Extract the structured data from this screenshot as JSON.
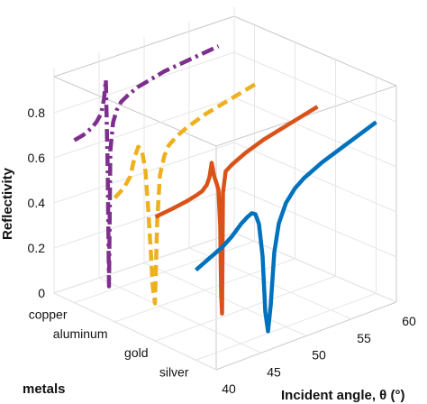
{
  "chart_data": {
    "type": "line",
    "projection": "3d",
    "zlabel": "Reflectivity",
    "xlabel": "Incident angle, θ (°)",
    "ylabel": "metals",
    "z_ticks": [
      "0",
      "0.2",
      "0.4",
      "0.6",
      "0.8"
    ],
    "x_ticks": [
      "40",
      "45",
      "50",
      "55",
      "60"
    ],
    "categories": [
      "copper",
      "aluminum",
      "gold",
      "silver"
    ],
    "zlim": [
      0,
      0.9
    ],
    "xlim": [
      40,
      60
    ],
    "grid": true,
    "series": [
      {
        "category": "copper",
        "color": "#7e2f8e",
        "style": "dash-dot",
        "x": [
          40.0,
          41.0,
          42.0,
          42.5,
          43.0,
          43.3,
          43.5,
          43.7,
          43.85,
          44.0,
          44.3,
          44.7,
          45.2,
          46.0,
          47.0,
          48.0,
          50.0,
          52.0,
          54.0,
          56.0
        ],
        "z": [
          0.72,
          0.73,
          0.75,
          0.77,
          0.8,
          0.86,
          0.94,
          0.55,
          0.02,
          0.62,
          0.74,
          0.79,
          0.82,
          0.84,
          0.86,
          0.87,
          0.89,
          0.9,
          0.91,
          0.92
        ]
      },
      {
        "category": "aluminum",
        "color": "#edb120",
        "style": "dashed",
        "x": [
          40.0,
          41.0,
          41.7,
          42.2,
          42.6,
          43.0,
          43.4,
          43.7,
          44.0,
          44.2,
          44.45,
          44.7,
          45.0,
          45.5,
          46.0,
          47.0,
          48.0,
          50.0,
          52.0,
          54.0,
          56.0
        ],
        "z": [
          0.55,
          0.58,
          0.62,
          0.7,
          0.74,
          0.72,
          0.62,
          0.45,
          0.25,
          0.1,
          0.02,
          0.38,
          0.58,
          0.66,
          0.7,
          0.73,
          0.75,
          0.78,
          0.8,
          0.82,
          0.84
        ]
      },
      {
        "category": "gold",
        "color": "#d95319",
        "style": "solid",
        "x": [
          40.0,
          42.0,
          43.5,
          44.5,
          45.2,
          45.7,
          46.0,
          46.25,
          46.5,
          46.8,
          47.0,
          47.2,
          47.3,
          47.4,
          47.5,
          47.8,
          48.5,
          50.0,
          52.0,
          54.0,
          56.0,
          58.0
        ],
        "z": [
          0.55,
          0.56,
          0.57,
          0.58,
          0.59,
          0.61,
          0.64,
          0.7,
          0.64,
          0.6,
          0.57,
          0.4,
          0.1,
          0.015,
          0.55,
          0.64,
          0.66,
          0.69,
          0.72,
          0.74,
          0.76,
          0.78
        ]
      },
      {
        "category": "silver",
        "color": "#0072bd",
        "style": "solid",
        "x": [
          40.0,
          41.0,
          42.0,
          43.0,
          44.0,
          45.0,
          45.7,
          46.2,
          46.6,
          47.0,
          47.4,
          47.7,
          48.0,
          48.3,
          48.7,
          49.2,
          50.0,
          51.0,
          52.0,
          54.0,
          56.0,
          58.0,
          60.0
        ],
        "z": [
          0.4,
          0.42,
          0.44,
          0.46,
          0.49,
          0.53,
          0.55,
          0.56,
          0.55,
          0.5,
          0.35,
          0.1,
          0.01,
          0.12,
          0.35,
          0.47,
          0.55,
          0.6,
          0.63,
          0.67,
          0.7,
          0.73,
          0.76
        ]
      }
    ]
  }
}
